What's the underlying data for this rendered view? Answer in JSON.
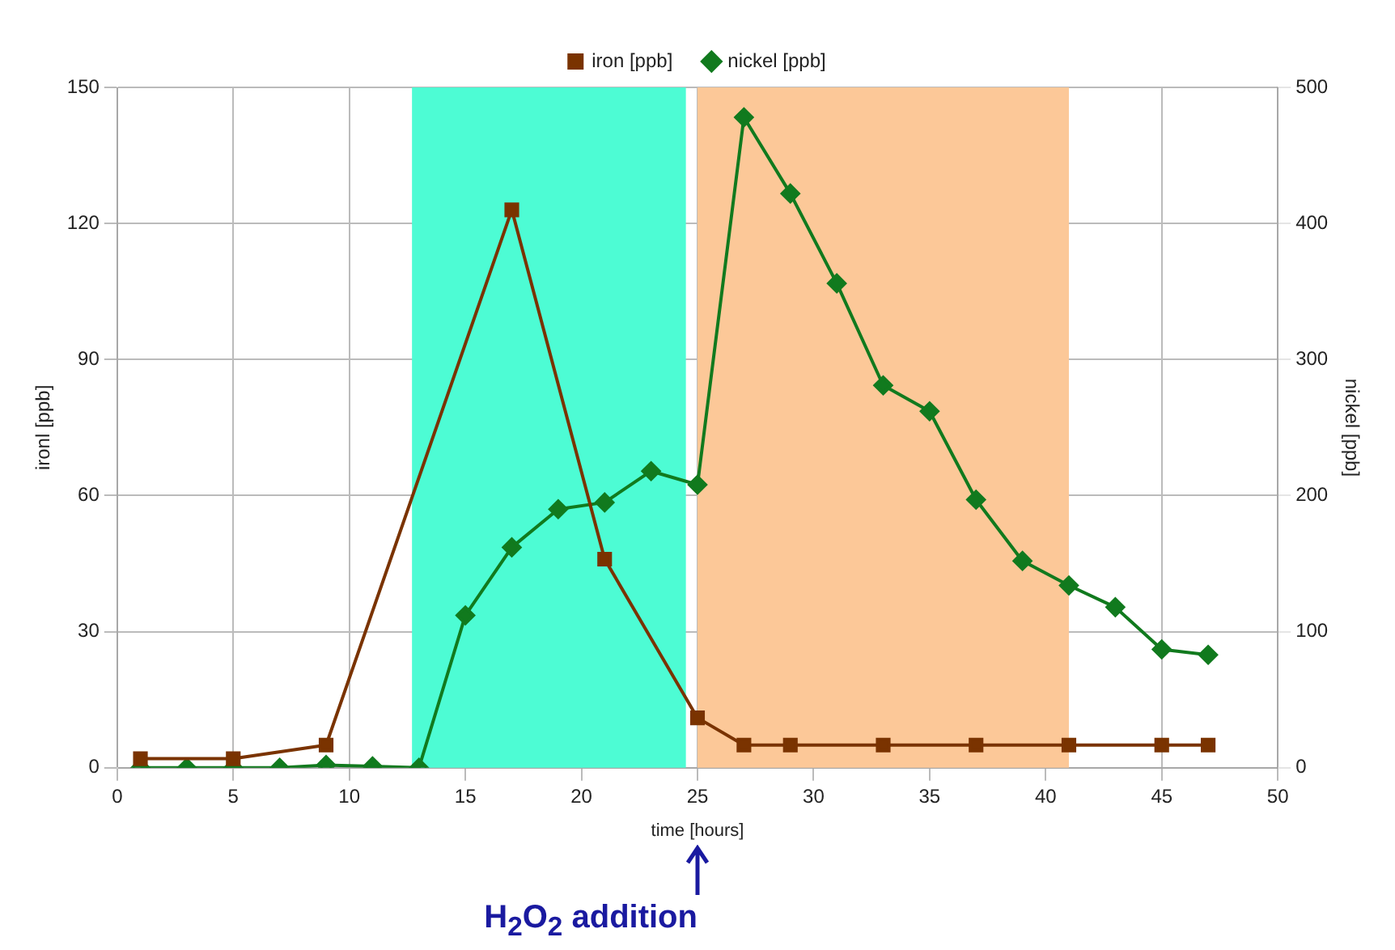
{
  "chart_data": {
    "type": "line",
    "xlabel": "time [hours]",
    "ylabel": "ironl [ppb]",
    "y2label": "nickel [ppb]",
    "xlim": [
      0,
      50
    ],
    "xticks": [
      0,
      5,
      10,
      15,
      20,
      25,
      30,
      35,
      40,
      45,
      50
    ],
    "ylim": [
      0,
      150
    ],
    "yticks": [
      0,
      30,
      60,
      90,
      120,
      150
    ],
    "y2lim": [
      0,
      500
    ],
    "y2ticks": [
      0,
      100,
      200,
      300,
      400,
      500
    ],
    "series": [
      {
        "name": "iron [ppb]",
        "color": "#7a3300",
        "marker": "square",
        "x": [
          1,
          5,
          9,
          17,
          21,
          25,
          27,
          29,
          33,
          37,
          41,
          45,
          47
        ],
        "values": [
          2,
          2,
          5,
          123,
          46,
          11,
          5,
          5,
          5,
          5,
          5,
          5,
          5
        ]
      },
      {
        "name": "nickel [ppb]",
        "color": "#117a1e",
        "marker": "diamond",
        "axis": "y2",
        "x": [
          1,
          3,
          5,
          7,
          9,
          11,
          13,
          15,
          17,
          19,
          21,
          23,
          25,
          27,
          29,
          31,
          33,
          35,
          37,
          39,
          41,
          43,
          45,
          47
        ],
        "values": [
          0,
          0,
          0,
          0,
          2,
          1,
          0,
          112,
          162,
          190,
          195,
          218,
          208,
          478,
          422,
          356,
          281,
          262,
          197,
          152,
          134,
          118,
          87,
          83
        ]
      }
    ],
    "bands": [
      {
        "axis": "x",
        "from": 12.7,
        "to": 24.5,
        "color": "#4dfcd4"
      },
      {
        "axis": "x",
        "from": 25,
        "to": 41,
        "color": "#fcc898"
      }
    ],
    "annotations": [
      "H$_{2}$O$_{2}$ addition"
    ],
    "grid": true,
    "legend": "top",
    "line_style": "solid"
  }
}
